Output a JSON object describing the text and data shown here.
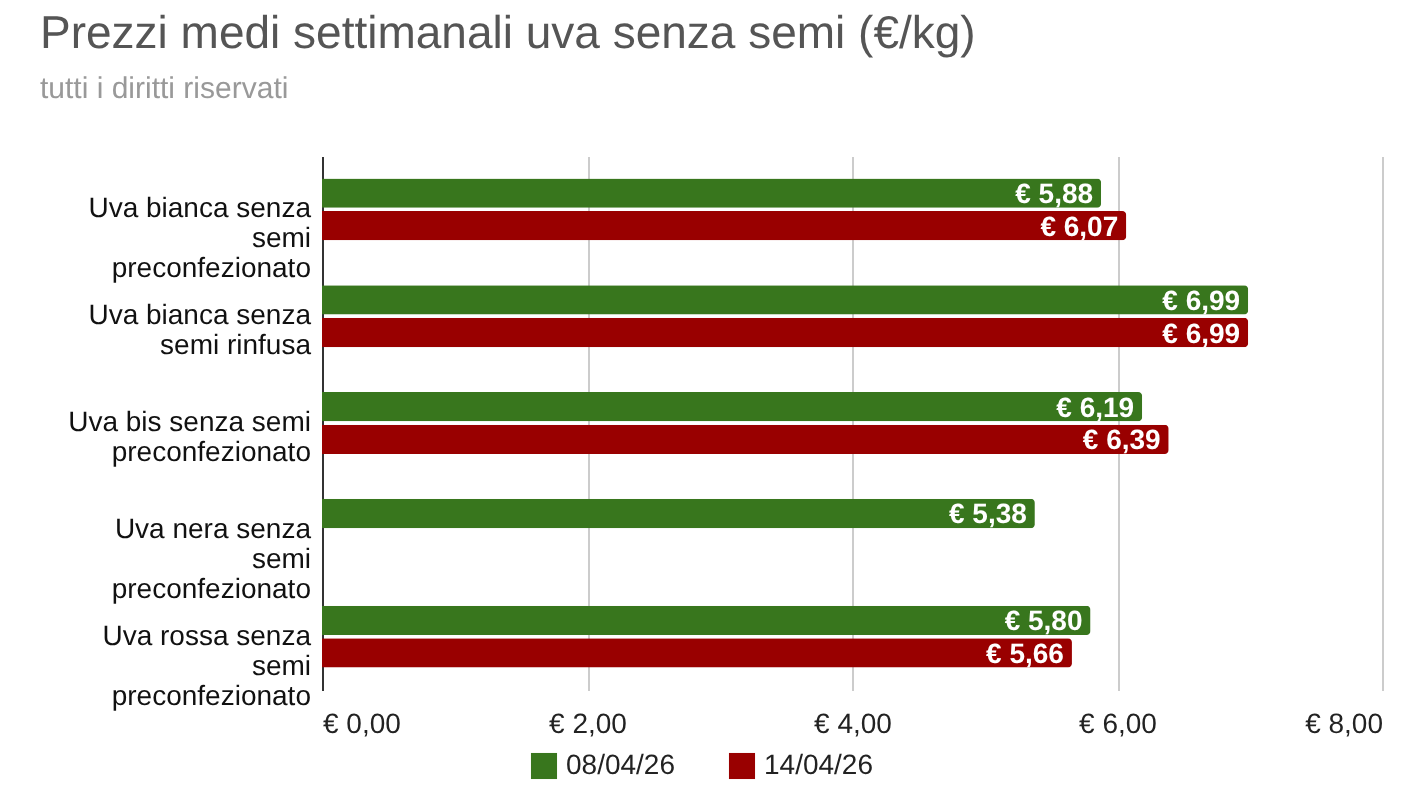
{
  "chart_data": {
    "type": "bar",
    "orientation": "horizontal",
    "title": "Prezzi medi settimanali uva senza semi (€/kg)",
    "subtitle": "tutti i diritti riservati",
    "categories": [
      "Uva bianca senza semi preconfezionato",
      "Uva bianca senza semi rinfusa",
      "Uva bis senza semi preconfezionato",
      "Uva nera senza semi preconfezionato",
      "Uva rossa senza semi preconfezionato"
    ],
    "series": [
      {
        "name": "08/04/26",
        "color": "#38761d",
        "values": [
          5.88,
          6.99,
          6.19,
          5.38,
          5.8
        ],
        "value_labels": [
          "€ 5,88",
          "€ 6,99",
          "€ 6,19",
          "€ 5,38",
          "€ 5,80"
        ]
      },
      {
        "name": "14/04/26",
        "color": "#990000",
        "values": [
          6.07,
          6.99,
          6.39,
          null,
          5.66
        ],
        "value_labels": [
          "€ 6,07",
          "€ 6,99",
          "€ 6,39",
          null,
          "€ 5,66"
        ]
      }
    ],
    "xlim": [
      0,
      8
    ],
    "xticks": [
      {
        "value": 0,
        "label": "€ 0,00"
      },
      {
        "value": 2,
        "label": "€ 2,00"
      },
      {
        "value": 4,
        "label": "€ 4,00"
      },
      {
        "value": 6,
        "label": "€ 6,00"
      },
      {
        "value": 8,
        "label": "€ 8,00"
      }
    ],
    "grid": "x",
    "legend": "bottom"
  }
}
